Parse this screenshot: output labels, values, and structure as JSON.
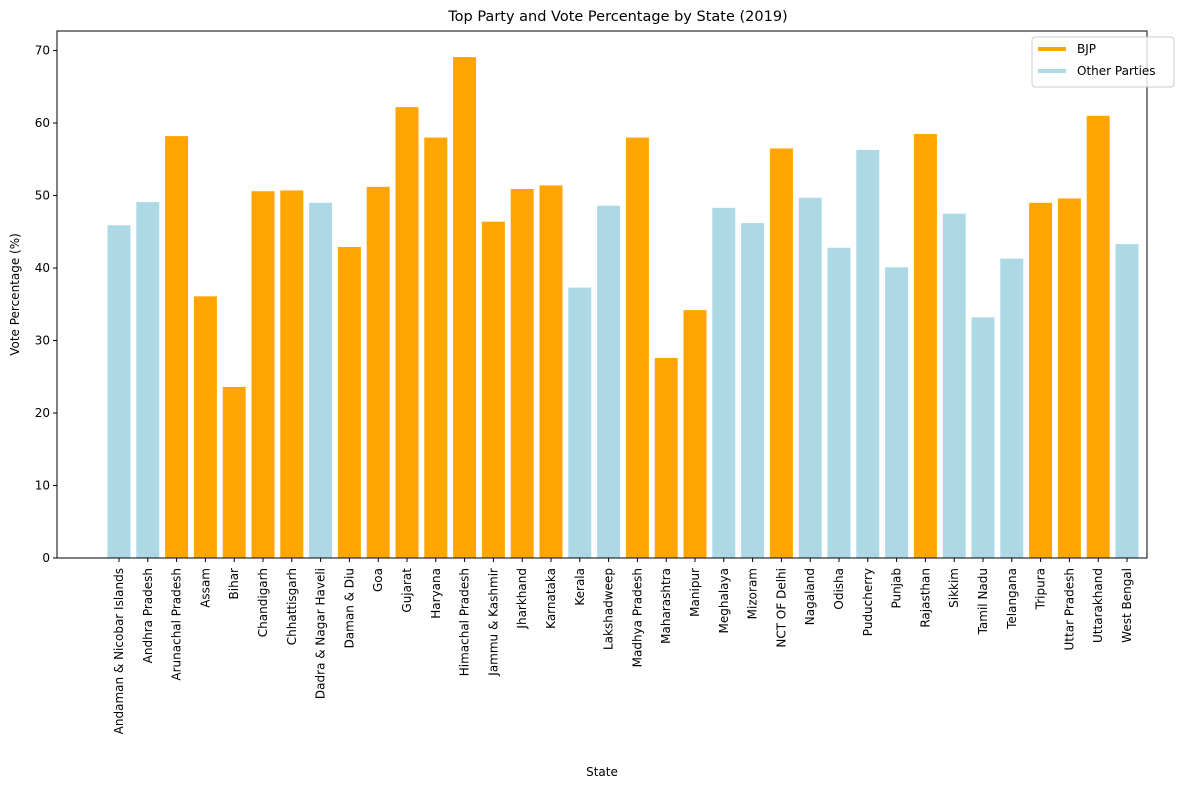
{
  "chart_data": {
    "type": "bar",
    "title": "Top Party and Vote Percentage by State (2019)",
    "xlabel": "State",
    "ylabel": "Vote Percentage (%)",
    "ylim": [
      0,
      72.7
    ],
    "yticks": [
      0,
      10,
      20,
      30,
      40,
      50,
      60,
      70
    ],
    "grid": false,
    "legend_position": "top-right",
    "legend": [
      {
        "label": "BJP",
        "color": "#FFA500"
      },
      {
        "label": "Other Parties",
        "color": "#ADD8E6"
      }
    ],
    "categories": [
      "Andaman & Nicobar Islands",
      "Andhra Pradesh",
      "Arunachal Pradesh",
      "Assam",
      "Bihar",
      "Chandigarh",
      "Chhattisgarh",
      "Dadra & Nagar Haveli",
      "Daman & Diu",
      "Goa",
      "Gujarat",
      "Haryana",
      "Himachal Pradesh",
      "Jammu & Kashmir",
      "Jharkhand",
      "Karnataka",
      "Kerala",
      "Lakshadweep",
      "Madhya Pradesh",
      "Maharashtra",
      "Manipur",
      "Meghalaya",
      "Mizoram",
      "NCT OF Delhi",
      "Nagaland",
      "Odisha",
      "Puducherry",
      "Punjab",
      "Rajasthan",
      "Sikkim",
      "Tamil Nadu",
      "Telangana",
      "Tripura",
      "Uttar Pradesh",
      "Uttarakhand",
      "West Bengal"
    ],
    "values": [
      45.9,
      49.1,
      58.2,
      36.1,
      23.6,
      50.6,
      50.7,
      49.0,
      42.9,
      51.2,
      62.2,
      58.0,
      69.1,
      46.4,
      50.9,
      51.4,
      37.3,
      48.6,
      58.0,
      27.6,
      34.2,
      48.3,
      46.2,
      56.5,
      49.7,
      42.8,
      56.3,
      40.1,
      58.5,
      47.5,
      33.2,
      41.3,
      49.0,
      49.6,
      61.0,
      43.3
    ],
    "party": [
      "Other",
      "Other",
      "BJP",
      "BJP",
      "BJP",
      "BJP",
      "BJP",
      "Other",
      "BJP",
      "BJP",
      "BJP",
      "BJP",
      "BJP",
      "BJP",
      "BJP",
      "BJP",
      "Other",
      "Other",
      "BJP",
      "BJP",
      "BJP",
      "Other",
      "Other",
      "BJP",
      "Other",
      "Other",
      "Other",
      "Other",
      "BJP",
      "Other",
      "Other",
      "Other",
      "BJP",
      "BJP",
      "BJP",
      "Other"
    ]
  }
}
